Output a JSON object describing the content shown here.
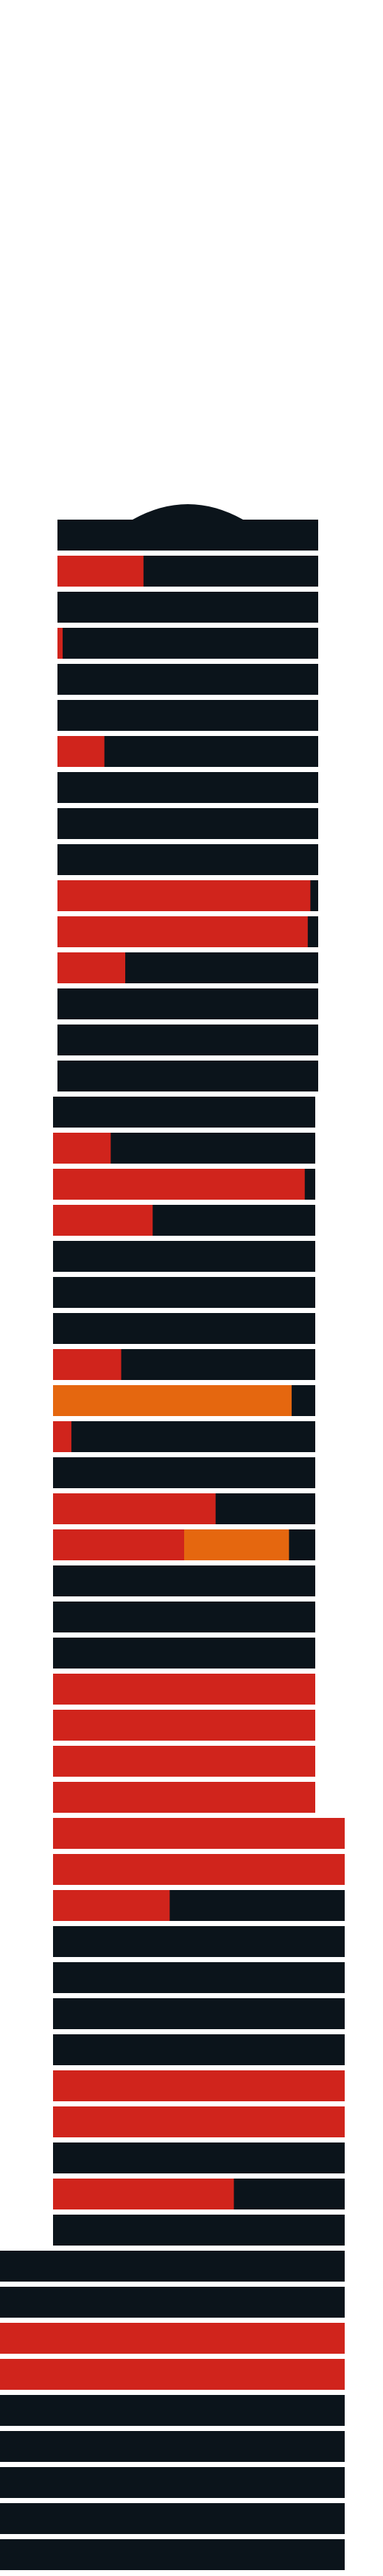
{
  "colors": {
    "background": "#ffffff",
    "floor": "#0b141b",
    "red": "#d0241c",
    "orange": "#e5670f"
  },
  "chart_data": {
    "type": "stacked-floor-diagram",
    "floors_bottom_to_top": [
      {
        "segments": []
      },
      {
        "segments": []
      },
      {
        "segments": []
      },
      {
        "segments": []
      },
      {
        "segments": []
      },
      {
        "segments": [
          {
            "color": "red",
            "fraction": 1.0
          }
        ]
      },
      {
        "segments": [
          {
            "color": "red",
            "fraction": 1.0
          }
        ]
      },
      {
        "segments": []
      },
      {
        "segments": []
      },
      {
        "segments": []
      },
      {
        "segments": [
          {
            "color": "red",
            "fraction": 0.62
          }
        ]
      },
      {
        "segments": []
      },
      {
        "segments": [
          {
            "color": "red",
            "fraction": 1.0
          }
        ]
      },
      {
        "segments": [
          {
            "color": "red",
            "fraction": 1.0
          }
        ]
      },
      {
        "segments": []
      },
      {
        "segments": []
      },
      {
        "segments": []
      },
      {
        "segments": []
      },
      {
        "segments": [
          {
            "color": "red",
            "fraction": 0.4
          }
        ]
      },
      {
        "segments": [
          {
            "color": "red",
            "fraction": 1.0
          }
        ]
      },
      {
        "segments": [
          {
            "color": "red",
            "fraction": 1.0
          }
        ]
      },
      {
        "segments": [
          {
            "color": "red",
            "fraction": 1.0
          }
        ]
      },
      {
        "segments": [
          {
            "color": "red",
            "fraction": 1.0
          }
        ]
      },
      {
        "segments": [
          {
            "color": "red",
            "fraction": 1.0
          }
        ]
      },
      {
        "segments": [
          {
            "color": "red",
            "fraction": 1.0
          }
        ]
      },
      {
        "segments": []
      },
      {
        "segments": []
      },
      {
        "segments": []
      },
      {
        "segments": [
          {
            "color": "red",
            "fraction": 0.5
          },
          {
            "color": "orange",
            "fraction": 0.4
          }
        ]
      },
      {
        "segments": [
          {
            "color": "red",
            "fraction": 0.62
          }
        ]
      },
      {
        "segments": []
      },
      {
        "segments": [
          {
            "color": "red",
            "fraction": 0.07
          }
        ]
      },
      {
        "segments": [
          {
            "color": "orange",
            "fraction": 0.91
          }
        ]
      },
      {
        "segments": [
          {
            "color": "red",
            "fraction": 0.26
          }
        ]
      },
      {
        "segments": []
      },
      {
        "segments": []
      },
      {
        "segments": []
      },
      {
        "segments": [
          {
            "color": "red",
            "fraction": 0.38
          }
        ]
      },
      {
        "segments": [
          {
            "color": "red",
            "fraction": 0.96
          }
        ]
      },
      {
        "segments": [
          {
            "color": "red",
            "fraction": 0.22
          }
        ]
      },
      {
        "segments": []
      },
      {
        "segments": []
      },
      {
        "segments": []
      },
      {
        "segments": []
      },
      {
        "segments": [
          {
            "color": "red",
            "fraction": 0.26
          }
        ]
      },
      {
        "segments": [
          {
            "color": "red",
            "fraction": 0.96
          }
        ]
      },
      {
        "segments": [
          {
            "color": "red",
            "fraction": 0.97
          }
        ]
      },
      {
        "segments": []
      },
      {
        "segments": []
      },
      {
        "segments": []
      },
      {
        "segments": [
          {
            "color": "red",
            "fraction": 0.18
          }
        ]
      },
      {
        "segments": []
      },
      {
        "segments": []
      },
      {
        "segments": [
          {
            "color": "red",
            "fraction": 0.02
          }
        ]
      },
      {
        "segments": []
      },
      {
        "segments": [
          {
            "color": "red",
            "fraction": 0.33
          }
        ]
      },
      {
        "segments": []
      }
    ]
  }
}
